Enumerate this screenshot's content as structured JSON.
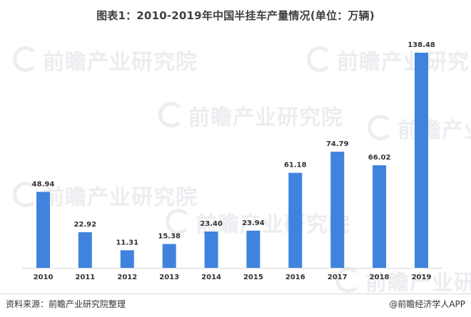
{
  "title": "图表1：2010-2019年中国半挂车产量情况(单位：万辆)",
  "watermark": "前瞻产业研究院",
  "source": "资料来源：前瞻产业研究院整理",
  "brand": "@前瞻经济学人APP",
  "bar_color": "#3f83de",
  "chart_data": {
    "type": "bar",
    "title": "图表1：2010-2019年中国半挂车产量情况(单位：万辆)",
    "categories": [
      "2010",
      "2011",
      "2012",
      "2013",
      "2014",
      "2015",
      "2016",
      "2017",
      "2018",
      "2019"
    ],
    "values": [
      48.94,
      22.92,
      11.31,
      15.38,
      23.4,
      23.94,
      61.18,
      74.79,
      66.02,
      138.48
    ],
    "labels": [
      "48.94",
      "22.92",
      "11.31",
      "15.38",
      "23.40",
      "23.94",
      "61.18",
      "74.79",
      "66.02",
      "138.48"
    ],
    "xlabel": "",
    "ylabel": "",
    "ylim": [
      0,
      138.48
    ],
    "grid": false,
    "legend": "none"
  }
}
